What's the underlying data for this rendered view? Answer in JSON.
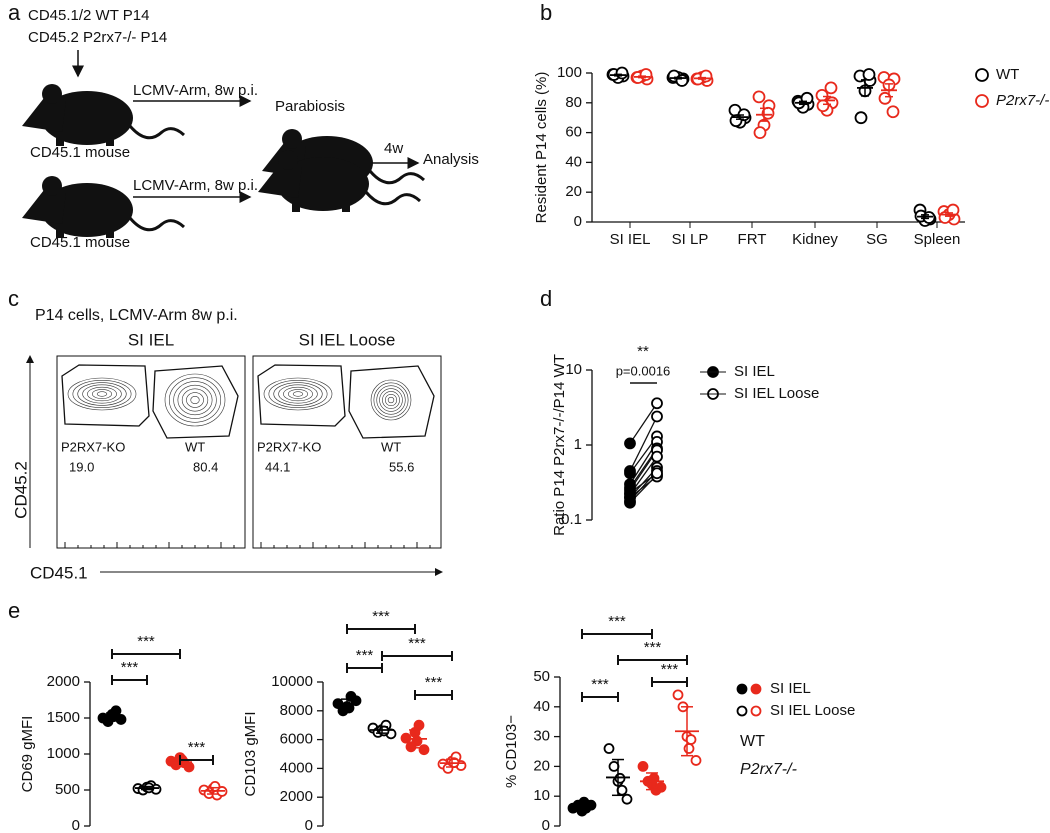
{
  "panel_labels": [
    "a",
    "b",
    "c",
    "d",
    "e"
  ],
  "diagram": {
    "donor_1": "CD45.1/2 WT P14",
    "donor_2": "CD45.2 P2rx7-/- P14",
    "infection_1": "LCMV-Arm, 8w p.i.",
    "infection_2": "LCMV-Arm, 8w p.i.",
    "mouse_1": "CD45.1 mouse",
    "mouse_2": "CD45.1 mouse",
    "parabiosis": "Parabiosis",
    "duration": "4w",
    "analysis": "Analysis"
  },
  "flow": {
    "title": "P14 cells, LCMV-Arm 8w p.i.",
    "y_label": "CD45.2",
    "x_label": "CD45.1",
    "plots": [
      {
        "title": "SI IEL",
        "gates": [
          {
            "name": "P2RX7-KO",
            "value": "19.0"
          },
          {
            "name": "WT",
            "value": "80.4"
          }
        ]
      },
      {
        "title": "SI IEL Loose",
        "gates": [
          {
            "name": "P2RX7-KO",
            "value": "44.1"
          },
          {
            "name": "WT",
            "value": "55.6"
          }
        ]
      }
    ]
  },
  "chart_data": [
    {
      "type": "dot",
      "y_label": "Resident P14 cells (%)",
      "categories": [
        "SI IEL",
        "SI LP",
        "FRT",
        "Kidney",
        "SG",
        "Spleen"
      ],
      "ylim": [
        0,
        100
      ],
      "yticks": [
        0,
        20,
        40,
        60,
        80,
        100
      ],
      "legend": "right",
      "series": [
        {
          "name": "WT",
          "color": "#000000",
          "values": [
            [
              99,
              98,
              97,
              99,
              100
            ],
            [
              97,
              96,
              97,
              98,
              95
            ],
            [
              75,
              70,
              67,
              68,
              72
            ],
            [
              81,
              79,
              77,
              80,
              83
            ],
            [
              98,
              95,
              88,
              70,
              99
            ],
            [
              8,
              2,
              1,
              4,
              3
            ]
          ],
          "mean": [
            98.6,
            96.6,
            70.4,
            80,
            90,
            3.6
          ],
          "sem": [
            0.5,
            0.5,
            1.4,
            1,
            5.4,
            1.2
          ]
        },
        {
          "name": "P2rx7-/-",
          "color": "#e8291c",
          "values": [
            [
              97,
              96,
              98,
              97,
              99
            ],
            [
              96,
              95,
              97,
              96,
              98
            ],
            [
              84,
              78,
              65,
              60,
              73
            ],
            [
              85,
              80,
              75,
              78,
              90
            ],
            [
              97,
              96,
              92,
              83,
              74
            ],
            [
              7,
              2,
              5,
              3,
              8
            ]
          ],
          "mean": [
            97.4,
            96.4,
            72,
            81.6,
            88.4,
            5
          ],
          "sem": [
            0.5,
            0.5,
            4.3,
            2.6,
            4.3,
            1.1
          ]
        }
      ]
    },
    {
      "type": "paired",
      "y_label": "Ratio P14 P2rx7-/-/P14 WT",
      "log_scale": true,
      "ylim": [
        0.1,
        10
      ],
      "yticks": [
        0.1,
        1,
        10
      ],
      "annotations": [
        "**",
        "p=0.0016"
      ],
      "legend": "right",
      "series": [
        {
          "name": "SI IEL",
          "color": "#000000",
          "filled": true,
          "values": [
            1.05,
            0.45,
            0.42,
            0.3,
            0.27,
            0.25,
            0.22,
            0.2,
            0.18,
            0.17,
            0.2,
            0.23
          ]
        },
        {
          "name": "SI IEL Loose",
          "color": "#000000",
          "filled": false,
          "values": [
            3.6,
            2.4,
            1.3,
            1.1,
            0.9,
            0.85,
            0.7,
            0.5,
            0.45,
            0.4,
            0.38,
            0.42
          ]
        }
      ]
    },
    {
      "type": "group-dot",
      "y_label": "CD69 gMFI",
      "ylim": [
        0,
        2000
      ],
      "yticks": [
        0,
        500,
        1000,
        1500,
        2000
      ],
      "significance": [
        "***",
        "***",
        "***"
      ],
      "groups": [
        {
          "color": "#000000",
          "filled": true,
          "values": [
            1500,
            1450,
            1550,
            1600,
            1480,
            1520
          ],
          "mean": 1517,
          "sd": 52
        },
        {
          "color": "#000000",
          "filled": false,
          "values": [
            520,
            500,
            540,
            560,
            510,
            530
          ],
          "mean": 527,
          "sd": 21
        },
        {
          "color": "#e8291c",
          "filled": true,
          "values": [
            900,
            850,
            950,
            880,
            820,
            920
          ],
          "mean": 887,
          "sd": 47
        },
        {
          "color": "#e8291c",
          "filled": false,
          "values": [
            500,
            450,
            520,
            430,
            480,
            550
          ],
          "mean": 488,
          "sd": 44
        }
      ]
    },
    {
      "type": "group-dot",
      "y_label": "CD103 gMFI",
      "ylim": [
        0,
        10000
      ],
      "yticks": [
        0,
        2000,
        4000,
        6000,
        8000,
        10000
      ],
      "significance": [
        "***",
        "***",
        "***",
        "***"
      ],
      "groups": [
        {
          "color": "#000000",
          "filled": true,
          "values": [
            8500,
            8000,
            8300,
            9000,
            8700,
            8200
          ],
          "mean": 8450,
          "sd": 360
        },
        {
          "color": "#000000",
          "filled": false,
          "values": [
            6800,
            6500,
            6700,
            7000,
            6400,
            6600
          ],
          "mean": 6667,
          "sd": 220
        },
        {
          "color": "#e8291c",
          "filled": true,
          "values": [
            6100,
            5500,
            6500,
            7000,
            5300,
            5900
          ],
          "mean": 6050,
          "sd": 620
        },
        {
          "color": "#e8291c",
          "filled": false,
          "values": [
            4300,
            4000,
            4500,
            4800,
            4200,
            4400
          ],
          "mean": 4367,
          "sd": 270
        }
      ]
    },
    {
      "type": "group-dot",
      "y_label": "% CD103−",
      "ylim": [
        0,
        50
      ],
      "yticks": [
        0,
        10,
        20,
        30,
        40,
        50
      ],
      "significance": [
        "***",
        "***",
        "***",
        "***"
      ],
      "groups": [
        {
          "color": "#000000",
          "filled": true,
          "values": [
            6,
            7,
            5,
            6,
            7,
            8
          ],
          "mean": 6.5,
          "sd": 1
        },
        {
          "color": "#000000",
          "filled": false,
          "values": [
            26,
            20,
            15,
            12,
            9,
            16
          ],
          "mean": 16.3,
          "sd": 6
        },
        {
          "color": "#e8291c",
          "filled": true,
          "values": [
            20,
            15,
            14,
            12,
            13,
            16
          ],
          "mean": 15,
          "sd": 2.8
        },
        {
          "color": "#e8291c",
          "filled": false,
          "values": [
            44,
            40,
            30,
            29,
            22,
            26
          ],
          "mean": 31.8,
          "sd": 8.2
        }
      ]
    }
  ],
  "legend_e": {
    "entries": [
      "SI IEL",
      "SI IEL Loose"
    ],
    "genotypes": [
      "WT",
      "P2rx7-/-"
    ],
    "colors": [
      "#000000",
      "#e8291c"
    ]
  }
}
